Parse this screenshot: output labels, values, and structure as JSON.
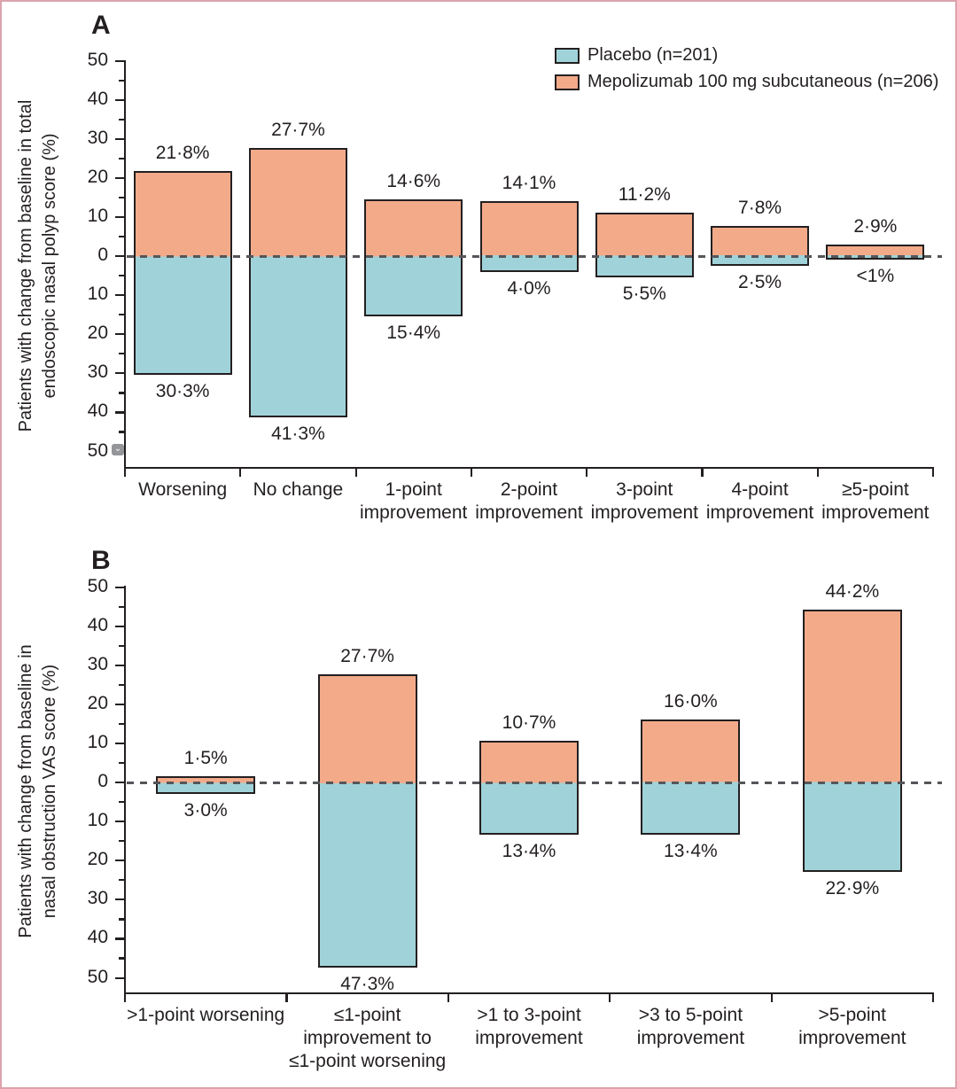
{
  "figure": {
    "panel_a_letter": "A",
    "panel_b_letter": "B",
    "legend": [
      {
        "label": "Placebo (n=201)",
        "color": "#A0D3D9"
      },
      {
        "label": "Mepolizumab 100 mg subcutaneous (n=206)",
        "color": "#F2AA89"
      }
    ],
    "icons": {
      "annotation_chevron": "⌄"
    }
  },
  "colors": {
    "mepolizumab": "#F2AA89",
    "placebo": "#A0D3D9",
    "outline": "#231F20",
    "dashed_zero_line": "#55565A",
    "text": "#231F20",
    "frame_border": "#DCA2AC"
  },
  "chart_data": [
    {
      "panel": "A",
      "type": "bar",
      "subtype": "mirrored-diverging",
      "title": "",
      "xlabel": "",
      "ylabel": "Patients with change from baseline in total endoscopic nasal polyp score (%)",
      "ylabel_lines": [
        "Patients with change from baseline in total",
        "endoscopic nasal polyp score (%)"
      ],
      "ylim": [
        -50,
        50
      ],
      "ytick_step": 10,
      "minor_tick_step": 5,
      "ytick_labels": [
        "50",
        "40",
        "30",
        "20",
        "10",
        "0",
        "10",
        "20",
        "30",
        "40",
        "50"
      ],
      "grid": false,
      "legend_position": "top-right",
      "zero_line": "dashed",
      "categories": [
        [
          "Worsening"
        ],
        [
          "No change"
        ],
        [
          "1-point",
          "improvement"
        ],
        [
          "2-point",
          "improvement"
        ],
        [
          "3-point",
          "improvement"
        ],
        [
          "4-point",
          "improvement"
        ],
        [
          "≥5-point",
          "improvement"
        ]
      ],
      "series": [
        {
          "name": "Mepolizumab 100 mg subcutaneous (n=206)",
          "direction": "up",
          "color": "#F2AA89",
          "values": [
            21.8,
            27.7,
            14.6,
            14.1,
            11.2,
            7.8,
            2.9
          ],
          "value_labels": [
            "21·8%",
            "27·7%",
            "14·6%",
            "14·1%",
            "11·2%",
            "7·8%",
            "2·9%"
          ]
        },
        {
          "name": "Placebo (n=201)",
          "direction": "down",
          "color": "#A0D3D9",
          "values": [
            30.3,
            41.3,
            15.4,
            4.0,
            5.5,
            2.5,
            0.9
          ],
          "value_labels": [
            "30·3%",
            "41·3%",
            "15·4%",
            "4·0%",
            "5·5%",
            "2·5%",
            "<1%"
          ]
        }
      ]
    },
    {
      "panel": "B",
      "type": "bar",
      "subtype": "mirrored-diverging",
      "title": "",
      "xlabel": "",
      "ylabel": "Patients with change from baseline in nasal obstruction VAS score (%)",
      "ylabel_lines": [
        "Patients with change from baseline in",
        "nasal obstruction VAS score (%)"
      ],
      "ylim": [
        -50,
        50
      ],
      "ytick_step": 10,
      "minor_tick_step": 5,
      "ytick_labels": [
        "50",
        "40",
        "30",
        "20",
        "10",
        "0",
        "10",
        "20",
        "30",
        "40",
        "50"
      ],
      "grid": false,
      "legend_position": "none",
      "zero_line": "dashed",
      "categories": [
        [
          ">1-point worsening"
        ],
        [
          "≤1-point",
          "improvement to",
          "≤1-point worsening"
        ],
        [
          ">1 to 3-point",
          "improvement"
        ],
        [
          ">3 to 5-point",
          "improvement"
        ],
        [
          ">5-point",
          "improvement"
        ]
      ],
      "series": [
        {
          "name": "Mepolizumab 100 mg subcutaneous (n=206)",
          "direction": "up",
          "color": "#F2AA89",
          "values": [
            1.5,
            27.7,
            10.7,
            16.0,
            44.2
          ],
          "value_labels": [
            "1·5%",
            "27·7%",
            "10·7%",
            "16·0%",
            "44·2%"
          ]
        },
        {
          "name": "Placebo (n=201)",
          "direction": "down",
          "color": "#A0D3D9",
          "values": [
            3.0,
            47.3,
            13.4,
            13.4,
            22.9
          ],
          "value_labels": [
            "3·0%",
            "47·3%",
            "13·4%",
            "13·4%",
            "22·9%"
          ]
        }
      ]
    }
  ]
}
